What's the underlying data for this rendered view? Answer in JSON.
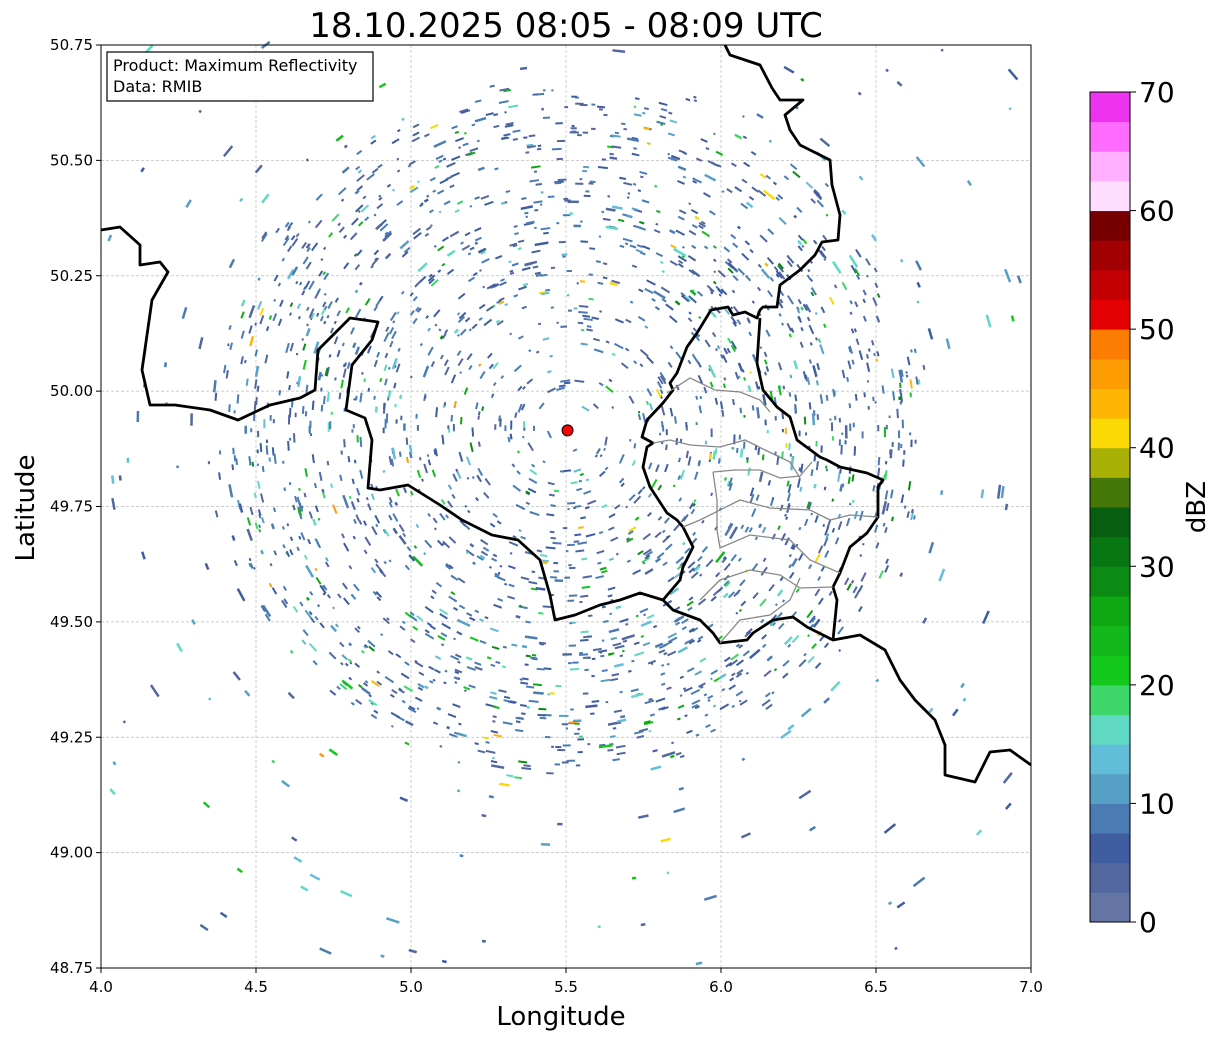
{
  "chart_data": {
    "type": "heatmap",
    "title": "18.10.2025 08:05 - 08:09 UTC",
    "xlabel": "Longitude",
    "ylabel": "Latitude",
    "xlim": [
      4.0,
      7.0
    ],
    "ylim": [
      48.75,
      50.75
    ],
    "xticks": [
      "4.0",
      "4.5",
      "5.0",
      "5.5",
      "6.0",
      "6.5",
      "7.0"
    ],
    "yticks": [
      "48.75",
      "49.00",
      "49.25",
      "49.50",
      "49.75",
      "50.00",
      "50.25",
      "50.50",
      "50.75"
    ],
    "grid": true,
    "annotation": {
      "product": "Product: Maximum Reflectivity",
      "data": "Data: RMIB",
      "placement": "top-left"
    },
    "radar_site": {
      "lon": 5.505,
      "lat": 49.915,
      "color": "#ff0000"
    },
    "colorbar": {
      "label": "dBZ",
      "range": [
        0,
        70
      ],
      "ticks": [
        "0",
        "10",
        "20",
        "30",
        "40",
        "50",
        "60",
        "70"
      ],
      "step": 2.5,
      "colors": [
        "#6475a5",
        "#52679f",
        "#3f5da0",
        "#4a7cb3",
        "#56a0c6",
        "#62bdd8",
        "#5fd8c4",
        "#3cd66a",
        "#13c81a",
        "#12b81b",
        "#0fa814",
        "#0b8a14",
        "#087611",
        "#075e10",
        "#457808",
        "#a9b006",
        "#fbd905",
        "#fdb603",
        "#fd9c03",
        "#fd7d02",
        "#e30003",
        "#c20004",
        "#a00002",
        "#770002",
        "#ffddff",
        "#ffb1ff",
        "#ff6bff",
        "#ee33ee"
      ]
    }
  }
}
